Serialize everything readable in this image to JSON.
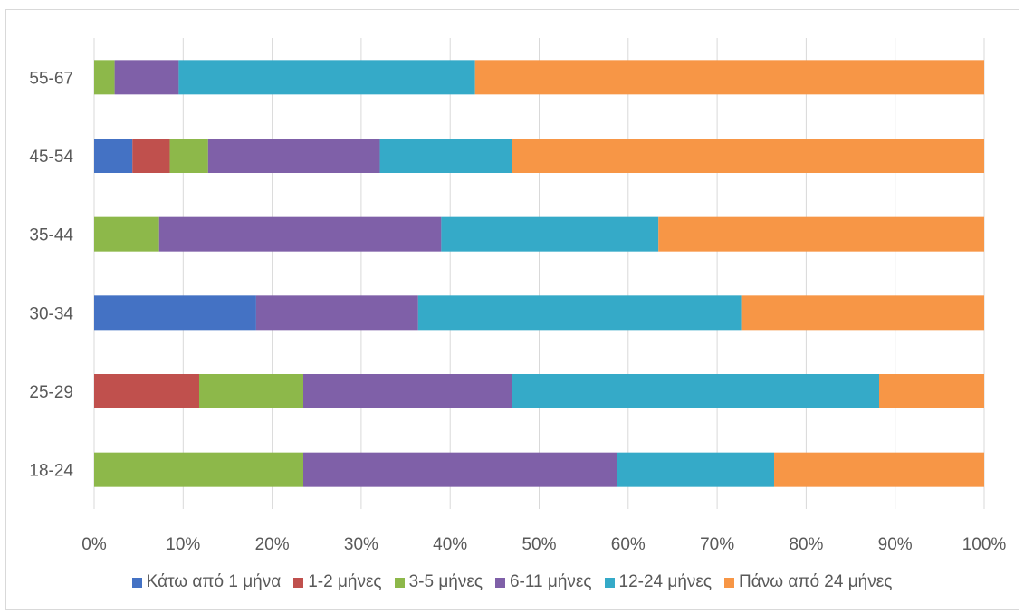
{
  "chart_data": {
    "type": "bar",
    "orientation": "horizontal",
    "stacked": "percent",
    "categories": [
      "18-24",
      "25-29",
      "30-34",
      "35-44",
      "45-54",
      "55-67"
    ],
    "xticks": [
      "0%",
      "10%",
      "20%",
      "30%",
      "40%",
      "50%",
      "60%",
      "70%",
      "80%",
      "90%",
      "100%"
    ],
    "xlim": [
      0,
      100
    ],
    "grid": true,
    "legend_position": "bottom",
    "series": [
      {
        "name": "Κάτω από 1 μήνα",
        "color": "#4472c4",
        "values": [
          0,
          0,
          18.2,
          0,
          4.3,
          0
        ]
      },
      {
        "name": "1-2 μήνες",
        "color": "#c0504d",
        "values": [
          0,
          11.8,
          0,
          0,
          4.2,
          0
        ]
      },
      {
        "name": "3-5 μήνες",
        "color": "#8db84a",
        "values": [
          23.5,
          11.7,
          0,
          7.3,
          4.3,
          2.3
        ]
      },
      {
        "name": "6-11 μήνες",
        "color": "#7f60a8",
        "values": [
          35.3,
          23.5,
          18.2,
          31.7,
          19.3,
          7.2
        ]
      },
      {
        "name": "12-24 μήνες",
        "color": "#35aac8",
        "values": [
          17.6,
          41.2,
          36.3,
          24.4,
          14.8,
          33.3
        ]
      },
      {
        "name": "Πάνω από 24 μήνες",
        "color": "#f79646",
        "values": [
          23.6,
          11.8,
          27.3,
          36.6,
          53.1,
          57.2
        ]
      }
    ]
  }
}
